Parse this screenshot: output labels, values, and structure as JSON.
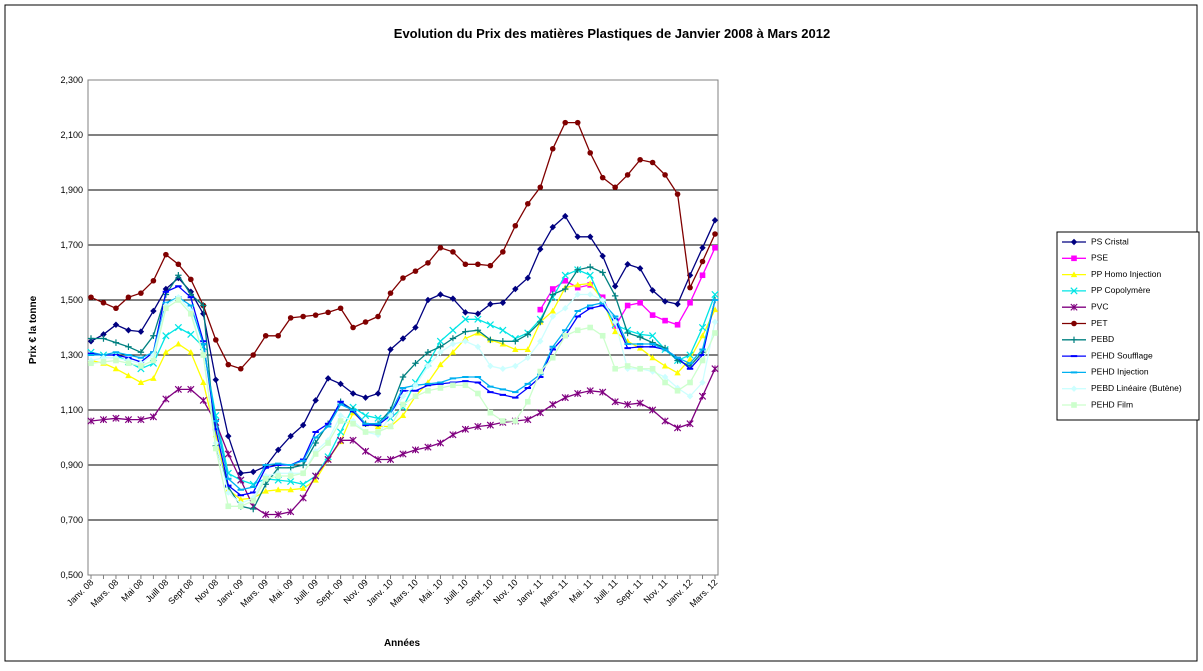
{
  "chart_data": {
    "type": "line",
    "title": "Evolution du Prix des matières Plastiques de Janvier 2008 à Mars 2012",
    "x_label": "Années",
    "y_label": "Prix € la tonne",
    "categories": [
      "Janv. 08",
      null,
      "Mars. 08",
      null,
      "Mai 08",
      null,
      "Juill 08",
      null,
      "Sept 08",
      null,
      "Nov 08",
      null,
      "Janv. 09",
      null,
      "Mars. 09",
      null,
      "Mai. 09",
      null,
      "Juill. 09",
      null,
      "Sept. 09",
      null,
      "Nov. 09",
      null,
      "Janv. 10",
      null,
      "Mars. 10",
      null,
      "Mai. 10",
      null,
      "Juill. 10",
      null,
      "Sept. 10",
      null,
      "Nov. 10",
      null,
      "Janv. 11",
      null,
      "Mars. 11",
      null,
      "Mai. 11",
      null,
      "Juill. 11",
      null,
      "Sept. 11",
      null,
      "Nov. 11",
      null,
      "Janv. 12",
      null,
      "Mars. 12"
    ],
    "ylim": [
      500,
      2300
    ],
    "yticks": [
      {
        "value": 500,
        "label": "0,500"
      },
      {
        "value": 700,
        "label": "0,700"
      },
      {
        "value": 900,
        "label": "0,900"
      },
      {
        "value": 1100,
        "label": "1,100"
      },
      {
        "value": 1300,
        "label": "1,300"
      },
      {
        "value": 1500,
        "label": "1,500"
      },
      {
        "value": 1700,
        "label": "1,700"
      },
      {
        "value": 1900,
        "label": "1,900"
      },
      {
        "value": 2100,
        "label": "2,100"
      },
      {
        "value": 2300,
        "label": "2,300"
      }
    ],
    "grid": true,
    "legend": "right",
    "series": [
      {
        "name": "PS Cristal",
        "color": "#000080",
        "marker": "diamond",
        "values": [
          1350,
          1375,
          1410,
          1390,
          1385,
          1460,
          1540,
          1580,
          1530,
          1450,
          1210,
          1005,
          870,
          875,
          895,
          955,
          1005,
          1045,
          1135,
          1215,
          1195,
          1160,
          1145,
          1160,
          1320,
          1360,
          1400,
          1500,
          1520,
          1505,
          1455,
          1450,
          1485,
          1490,
          1540,
          1580,
          1685,
          1765,
          1805,
          1730,
          1730,
          1660,
          1550,
          1630,
          1615,
          1535,
          1495,
          1485,
          1590,
          1690,
          1790
        ]
      },
      {
        "name": "PSE",
        "color": "#ff00ff",
        "marker": "square",
        "values": [
          null,
          null,
          null,
          null,
          null,
          null,
          null,
          null,
          null,
          null,
          null,
          null,
          null,
          null,
          null,
          null,
          null,
          null,
          null,
          null,
          null,
          null,
          null,
          null,
          null,
          null,
          null,
          null,
          null,
          null,
          null,
          null,
          null,
          null,
          null,
          null,
          1465,
          1540,
          1570,
          1545,
          1555,
          1510,
          1405,
          1480,
          1490,
          1445,
          1425,
          1410,
          1490,
          1590,
          1690
        ]
      },
      {
        "name": "PP Homo Injection",
        "color": "#ffff00",
        "marker": "triangle",
        "values": [
          1280,
          1270,
          1250,
          1225,
          1200,
          1215,
          1310,
          1340,
          1310,
          1200,
          1010,
          810,
          775,
          780,
          805,
          810,
          810,
          815,
          845,
          920,
          985,
          1090,
          1050,
          1040,
          1040,
          1080,
          1150,
          1200,
          1265,
          1310,
          1360,
          1380,
          1355,
          1340,
          1320,
          1320,
          1420,
          1460,
          1545,
          1555,
          1560,
          1500,
          1385,
          1350,
          1325,
          1290,
          1260,
          1235,
          1285,
          1370,
          1465
        ]
      },
      {
        "name": "PP Copolymère",
        "color": "#00e5e5",
        "marker": "x",
        "values": [
          1310,
          1300,
          1300,
          1275,
          1250,
          1270,
          1370,
          1400,
          1375,
          1330,
          1080,
          870,
          845,
          830,
          850,
          845,
          840,
          830,
          860,
          930,
          1020,
          1110,
          1080,
          1070,
          1070,
          1110,
          1200,
          1270,
          1350,
          1390,
          1430,
          1430,
          1410,
          1390,
          1360,
          1380,
          1430,
          1510,
          1590,
          1610,
          1590,
          1490,
          1410,
          1390,
          1375,
          1370,
          1320,
          1280,
          1300,
          1400,
          1520
        ]
      },
      {
        "name": "PVC",
        "color": "#800080",
        "marker": "star",
        "values": [
          1060,
          1065,
          1070,
          1065,
          1065,
          1075,
          1140,
          1175,
          1175,
          1135,
          1055,
          940,
          845,
          750,
          720,
          720,
          730,
          780,
          860,
          920,
          990,
          990,
          950,
          920,
          920,
          940,
          955,
          965,
          980,
          1010,
          1030,
          1040,
          1045,
          1055,
          1060,
          1065,
          1090,
          1120,
          1145,
          1160,
          1170,
          1165,
          1130,
          1120,
          1125,
          1100,
          1060,
          1035,
          1050,
          1150,
          1250
        ]
      },
      {
        "name": "PET",
        "color": "#800000",
        "marker": "circle",
        "values": [
          1510,
          1490,
          1470,
          1510,
          1525,
          1570,
          1665,
          1630,
          1575,
          1480,
          1355,
          1265,
          1250,
          1300,
          1370,
          1370,
          1435,
          1440,
          1445,
          1455,
          1470,
          1400,
          1420,
          1440,
          1525,
          1580,
          1605,
          1635,
          1690,
          1675,
          1630,
          1630,
          1625,
          1675,
          1770,
          1850,
          1910,
          2050,
          2145,
          2145,
          2035,
          1945,
          1910,
          1955,
          2010,
          2000,
          1955,
          1885,
          1545,
          1640,
          1740
        ]
      },
      {
        "name": "PEBD",
        "color": "#008080",
        "marker": "plus",
        "values": [
          1360,
          1360,
          1345,
          1330,
          1310,
          1370,
          1520,
          1590,
          1520,
          1480,
          970,
          820,
          750,
          740,
          830,
          890,
          890,
          900,
          980,
          1050,
          1130,
          1100,
          1050,
          1050,
          1100,
          1220,
          1270,
          1310,
          1330,
          1360,
          1385,
          1390,
          1355,
          1350,
          1350,
          1375,
          1420,
          1520,
          1540,
          1610,
          1620,
          1600,
          1515,
          1380,
          1365,
          1345,
          1325,
          1280,
          1260,
          1310,
          1500
        ]
      },
      {
        "name": "PEHD Soufflage",
        "color": "#0000ff",
        "marker": "dash",
        "values": [
          1305,
          1300,
          1300,
          1290,
          1275,
          1310,
          1530,
          1550,
          1510,
          1350,
          1030,
          825,
          790,
          800,
          890,
          900,
          900,
          920,
          1020,
          1050,
          1130,
          1095,
          1045,
          1045,
          1080,
          1170,
          1170,
          1190,
          1195,
          1200,
          1205,
          1200,
          1165,
          1155,
          1145,
          1180,
          1220,
          1320,
          1370,
          1440,
          1470,
          1480,
          1430,
          1325,
          1330,
          1330,
          1320,
          1290,
          1250,
          1300,
          1500
        ]
      },
      {
        "name": "PEHD Injection",
        "color": "#00b0f0",
        "marker": "dash",
        "values": [
          1300,
          1300,
          1310,
          1300,
          1290,
          1310,
          1490,
          1510,
          1480,
          1340,
          1060,
          850,
          810,
          820,
          900,
          905,
          900,
          915,
          1000,
          1040,
          1120,
          1100,
          1050,
          1050,
          1090,
          1180,
          1190,
          1195,
          1200,
          1215,
          1220,
          1220,
          1185,
          1175,
          1165,
          1195,
          1230,
          1330,
          1390,
          1460,
          1480,
          1490,
          1440,
          1340,
          1340,
          1340,
          1320,
          1290,
          1270,
          1320,
          1500
        ]
      },
      {
        "name": "PEBD Linéaire (Butène)",
        "color": "#ccffff",
        "marker": "diamond",
        "values": [
          1280,
          1290,
          1290,
          1280,
          1270,
          1300,
          1480,
          1510,
          1460,
          1300,
          980,
          800,
          760,
          780,
          860,
          870,
          870,
          870,
          950,
          990,
          1080,
          1060,
          1020,
          1010,
          1080,
          1150,
          1190,
          1260,
          1310,
          1340,
          1350,
          1330,
          1260,
          1250,
          1260,
          1290,
          1350,
          1440,
          1470,
          1520,
          1520,
          1500,
          1420,
          1250,
          1250,
          1240,
          1220,
          1180,
          1150,
          1200,
          1420
        ]
      },
      {
        "name": "PEHD Film",
        "color": "#ccffcc",
        "marker": "square",
        "values": [
          1270,
          1275,
          1280,
          1270,
          1260,
          1280,
          1470,
          1500,
          1450,
          1300,
          960,
          750,
          750,
          770,
          850,
          860,
          860,
          870,
          940,
          980,
          1060,
          1050,
          1020,
          1020,
          1040,
          1120,
          1150,
          1170,
          1180,
          1190,
          1190,
          1160,
          1090,
          1060,
          1060,
          1130,
          1240,
          1290,
          1370,
          1390,
          1400,
          1370,
          1250,
          1260,
          1250,
          1250,
          1200,
          1170,
          1200,
          1280,
          1380
        ]
      }
    ]
  }
}
